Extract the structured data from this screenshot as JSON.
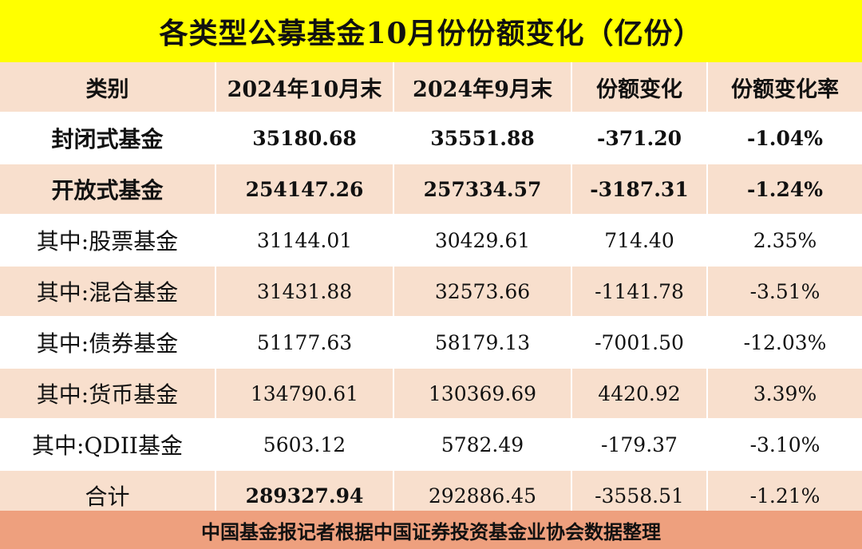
{
  "title": "各类型公募基金10月份份额变化（亿份）",
  "columns": [
    "类别",
    "2024年10月末",
    "2024年9月末",
    "份额变化",
    "份额变化率"
  ],
  "rows": [
    {
      "category": "封闭式基金",
      "oct": "35180.68",
      "sep": "35551.88",
      "change": "-371.20",
      "rate": "-1.04%"
    },
    {
      "category": "开放式基金",
      "oct": "254147.26",
      "sep": "257334.57",
      "change": "-3187.31",
      "rate": "-1.24%"
    },
    {
      "category": "其中:股票基金",
      "oct": "31144.01",
      "sep": "30429.61",
      "change": "714.40",
      "rate": "2.35%"
    },
    {
      "category": "其中:混合基金",
      "oct": "31431.88",
      "sep": "32573.66",
      "change": "-1141.78",
      "rate": "-3.51%"
    },
    {
      "category": "其中:债券基金",
      "oct": "51177.63",
      "sep": "58179.13",
      "change": "-7001.50",
      "rate": "-12.03%"
    },
    {
      "category": "其中:货币基金",
      "oct": "134790.61",
      "sep": "130369.69",
      "change": "4420.92",
      "rate": "3.39%"
    },
    {
      "category": "其中:QDII基金",
      "oct": "5603.12",
      "sep": "5782.49",
      "change": "-179.37",
      "rate": "-3.10%"
    },
    {
      "category": "合计",
      "oct": "289327.94",
      "sep": "292886.45",
      "change": "-3558.51",
      "rate": "-1.21%"
    }
  ],
  "footer": "中国基金报记者根据中国证券投资基金业协会数据整理",
  "colors": {
    "title_bg": "#ffff00",
    "band_bg": "#f8dfcd",
    "footer_bg": "#eea07e"
  }
}
